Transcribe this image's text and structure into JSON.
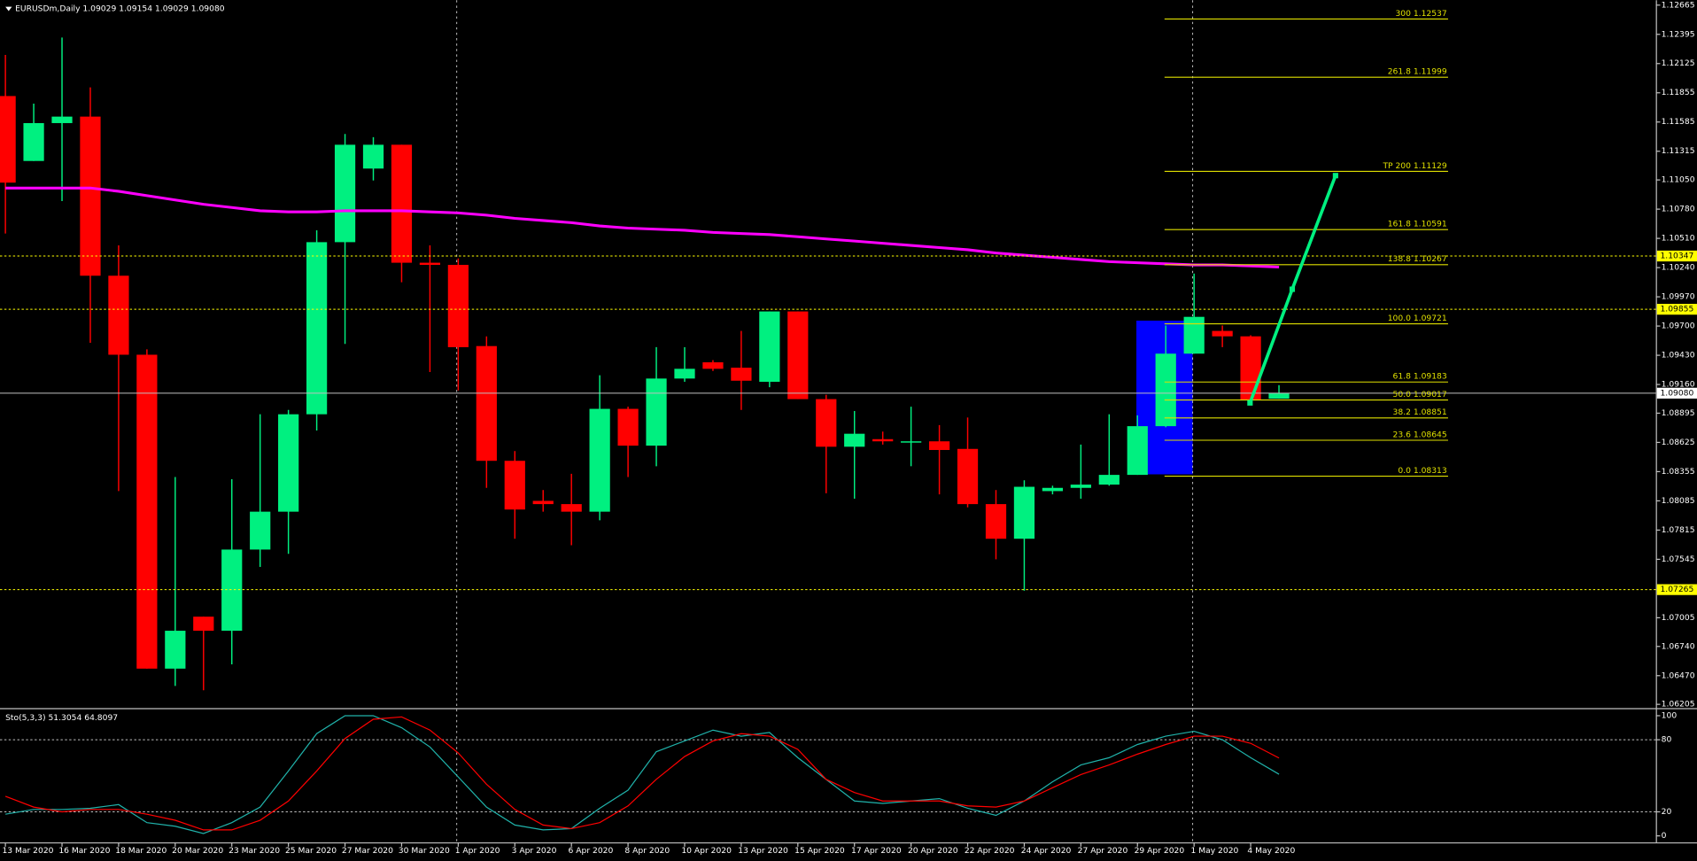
{
  "chart_data": [
    {
      "type": "candlestick",
      "title": "EURUSDm,Daily  1.09029 1.09154 1.09029 1.09080",
      "categories": [
        "13 Mar 2020",
        null,
        "16 Mar 2020",
        null,
        "18 Mar 2020",
        null,
        "20 Mar 2020",
        null,
        "23 Mar 2020",
        null,
        "25 Mar 2020",
        null,
        "27 Mar 2020",
        null,
        "30 Mar 2020",
        null,
        "1 Apr 2020",
        null,
        "3 Apr 2020",
        null,
        "6 Apr 2020",
        null,
        "8 Apr 2020",
        null,
        "10 Apr 2020",
        null,
        "13 Apr 2020",
        null,
        "15 Apr 2020",
        null,
        "17 Apr 2020",
        null,
        "20 Apr 2020",
        null,
        "22 Apr 2020",
        null,
        "24 Apr 2020",
        null,
        "27 Apr 2020",
        null,
        "29 Apr 2020",
        null,
        "1 May 2020",
        null,
        "4 May 2020",
        null
      ],
      "open": [
        1.11825,
        1.11225,
        1.11575,
        1.11635,
        1.10165,
        1.09435,
        1.06535,
        1.07015,
        1.06885,
        1.07635,
        1.07985,
        1.08885,
        1.10475,
        1.11155,
        1.11375,
        1.10285,
        1.10265,
        1.09515,
        1.08455,
        1.08085,
        1.08055,
        1.07985,
        1.08935,
        1.08595,
        1.09215,
        1.09365,
        1.09315,
        1.09185,
        1.09835,
        1.09025,
        1.08585,
        1.08655,
        1.08625,
        1.08635,
        1.08565,
        1.08055,
        1.07735,
        1.08175,
        1.08205,
        1.08235,
        1.08325,
        1.08775,
        1.09445,
        1.09655,
        1.09605,
        1.09029
      ],
      "high": [
        1.12205,
        1.11755,
        1.12365,
        1.11905,
        1.10445,
        1.09485,
        1.08305,
        1.07015,
        1.08285,
        1.08885,
        1.08925,
        1.10585,
        1.11475,
        1.11445,
        1.11375,
        1.10445,
        1.10325,
        1.09605,
        1.08545,
        1.08185,
        1.08335,
        1.09245,
        1.08955,
        1.09505,
        1.09505,
        1.09385,
        1.09655,
        1.09835,
        1.09835,
        1.09065,
        1.08915,
        1.08725,
        1.08955,
        1.08785,
        1.08855,
        1.08185,
        1.08275,
        1.08225,
        1.08605,
        1.08885,
        1.08875,
        1.09705,
        1.10185,
        1.09705,
        1.09615,
        1.09154
      ],
      "low": [
        1.10555,
        1.11225,
        1.10855,
        1.09545,
        1.08175,
        1.06535,
        1.06375,
        1.06335,
        1.06575,
        1.07475,
        1.07595,
        1.08735,
        1.09535,
        1.11045,
        1.10105,
        1.09275,
        1.09105,
        1.08205,
        1.07735,
        1.07985,
        1.07675,
        1.07905,
        1.08305,
        1.08405,
        1.09185,
        1.09285,
        1.08925,
        1.09135,
        1.09025,
        1.08155,
        1.08105,
        1.08605,
        1.08405,
        1.08145,
        1.08025,
        1.07545,
        1.07255,
        1.08145,
        1.08105,
        1.08225,
        1.08325,
        1.08765,
        1.09445,
        1.09505,
        1.08985,
        1.09029
      ],
      "close": [
        1.11025,
        1.11575,
        1.11635,
        1.10165,
        1.09435,
        1.06535,
        1.06885,
        1.06885,
        1.07635,
        1.07985,
        1.08885,
        1.10475,
        1.11375,
        1.11375,
        1.10285,
        1.10265,
        1.09505,
        1.08455,
        1.08005,
        1.08055,
        1.07985,
        1.08935,
        1.08595,
        1.09215,
        1.09305,
        1.09305,
        1.09195,
        1.09835,
        1.09025,
        1.08585,
        1.08705,
        1.08635,
        1.08635,
        1.08555,
        1.08055,
        1.07735,
        1.08215,
        1.08205,
        1.08235,
        1.08325,
        1.08775,
        1.09445,
        1.09785,
        1.09605,
        1.09015,
        1.0908
      ],
      "up_color": "#00f080",
      "down_color": "#ff0000",
      "ma": {
        "color": "#ff00ff",
        "values": [
          1.10975,
          1.10975,
          1.10975,
          1.10975,
          1.10945,
          1.10905,
          1.10865,
          1.10825,
          1.10795,
          1.10765,
          1.10755,
          1.10755,
          1.10765,
          1.10765,
          1.10765,
          1.10755,
          1.10745,
          1.10725,
          1.10695,
          1.10675,
          1.10655,
          1.10625,
          1.10605,
          1.10595,
          1.10585,
          1.10565,
          1.10555,
          1.10545,
          1.10525,
          1.10505,
          1.10485,
          1.10465,
          1.10445,
          1.10425,
          1.10405,
          1.10375,
          1.10355,
          1.10335,
          1.10315,
          1.10295,
          1.10285,
          1.10275,
          1.10265,
          1.10265,
          1.10255,
          1.10245
        ]
      },
      "ylim": [
        1.0617,
        1.1271
      ],
      "yticks": [
        1.12665,
        1.12395,
        1.12125,
        1.11855,
        1.11585,
        1.11315,
        {
          "value": 1.1105,
          "label": "1.11050"
        },
        {
          "value": 1.1078,
          "label": "1.10780"
        },
        {
          "value": 1.1051,
          "label": "1.10510"
        },
        {
          "value": 1.1024,
          "label": "1.10240"
        },
        {
          "value": 1.0997,
          "label": "1.09970"
        },
        {
          "value": 1.097,
          "label": "1.09700"
        },
        {
          "value": 1.0943,
          "label": "1.09430"
        },
        {
          "value": 1.0916,
          "label": "1.09160"
        },
        1.08895,
        1.08625,
        1.08355,
        1.08085,
        1.07815,
        1.07545,
        1.07005,
        {
          "value": 1.0674,
          "label": "1.06740"
        },
        {
          "value": 1.0647,
          "label": "1.06470"
        },
        1.06205
      ],
      "price_lines": [
        {
          "value": 1.10347,
          "label": "1.10347",
          "color": "#ffff00"
        },
        {
          "value": 1.09855,
          "label": "1.09855",
          "color": "#ffff00"
        },
        {
          "value": 1.0908,
          "label": "1.09080",
          "color": "#c0c0c0"
        },
        {
          "value": 1.07265,
          "label": "1.07265",
          "color": "#ffff00"
        }
      ],
      "fibo": {
        "color": "#e0e000",
        "levels": [
          {
            "text": "300 1.12537",
            "value": 1.12537
          },
          {
            "text": "261.8 1.11999",
            "value": 1.11999
          },
          {
            "text": "TP 200 1.11129",
            "value": 1.11129
          },
          {
            "text": "161.8 1.10591",
            "value": 1.10591
          },
          {
            "text": "138.8 1.10267",
            "value": 1.10267
          },
          {
            "text": "100.0 1.09721",
            "value": 1.09721
          },
          {
            "text": "61.8 1.09183",
            "value": 1.09183
          },
          {
            "text": "50.0 1.09017",
            "value": 1.09017
          },
          {
            "text": "38.2 1.08851",
            "value": 1.08851
          },
          {
            "text": "23.6 1.08645",
            "value": 1.08645
          },
          {
            "text": "0.0 1.08313",
            "value": 1.08313
          }
        ]
      }
    },
    {
      "type": "line",
      "title": "Sto(5,3,3) 51.3054 64.8097",
      "series": [
        {
          "color": "#20b2aa",
          "values": [
            18,
            22,
            22,
            23,
            26,
            11,
            8,
            2,
            11,
            24,
            54,
            85,
            100,
            100,
            90,
            74,
            49,
            24,
            9,
            5,
            6,
            23,
            38,
            70,
            79,
            88,
            83,
            86,
            65,
            47,
            29,
            27,
            29,
            31,
            23,
            17,
            29,
            45,
            59,
            65,
            76,
            83,
            87,
            80,
            65,
            51.3054
          ]
        },
        {
          "color": "#ff0000",
          "values": [
            33,
            24,
            20,
            22,
            22,
            18,
            13,
            5,
            5,
            13,
            29,
            54,
            81,
            97,
            99,
            88,
            69,
            43,
            22,
            9,
            6,
            11,
            25,
            47,
            66,
            79,
            85,
            83,
            72,
            47,
            36,
            29,
            29,
            29,
            25,
            24,
            29,
            40,
            51,
            59,
            68,
            76,
            83,
            83,
            77,
            64.8097
          ]
        }
      ],
      "ylim": [
        -5.4,
        105.4
      ],
      "yticks": [
        100,
        80,
        20,
        0
      ],
      "levels": [
        80,
        20
      ]
    }
  ]
}
